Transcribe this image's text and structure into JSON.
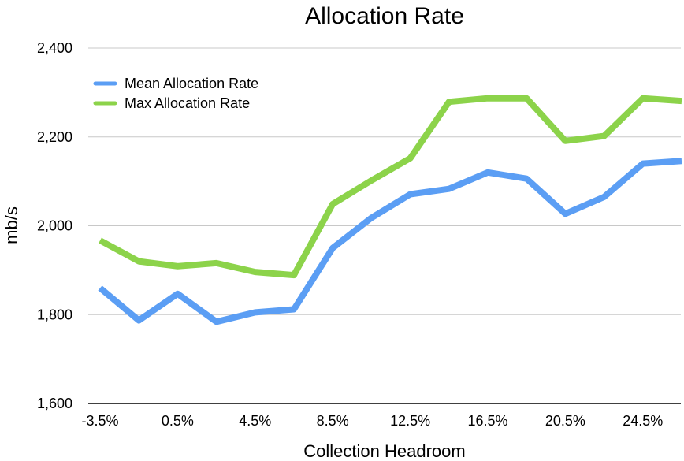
{
  "chart_data": {
    "type": "line",
    "title": "Allocation Rate",
    "xlabel": "Collection Headroom",
    "ylabel": "mb/s",
    "ylim": [
      1600,
      2400
    ],
    "y_ticks": [
      1600,
      1800,
      2000,
      2200,
      2400
    ],
    "y_tick_labels": [
      "1,600",
      "1,800",
      "2,000",
      "2,200",
      "2,400"
    ],
    "x": [
      "-3.5%",
      "-1.5%",
      "0.5%",
      "2.5%",
      "4.5%",
      "6.5%",
      "8.5%",
      "10.5%",
      "12.5%",
      "14.5%",
      "16.5%",
      "18.5%",
      "20.5%",
      "22.5%",
      "24.5%",
      "26.5%"
    ],
    "x_tick_labels": [
      "-3.5%",
      "0.5%",
      "4.5%",
      "8.5%",
      "12.5%",
      "16.5%",
      "20.5%",
      "24.5%"
    ],
    "grid": true,
    "legend_position": "top-left",
    "series": [
      {
        "name": "Mean Allocation Rate",
        "color": "#5b9ef4",
        "values": [
          1860,
          1787,
          1847,
          1784,
          1805,
          1812,
          1950,
          2018,
          2071,
          2083,
          2120,
          2106,
          2027,
          2065,
          2140,
          2146
        ]
      },
      {
        "name": "Max Allocation Rate",
        "color": "#8cd34a",
        "values": [
          1967,
          1920,
          1909,
          1916,
          1896,
          1889,
          2049,
          2102,
          2152,
          2279,
          2287,
          2287,
          2191,
          2202,
          2287,
          2281
        ]
      }
    ]
  }
}
